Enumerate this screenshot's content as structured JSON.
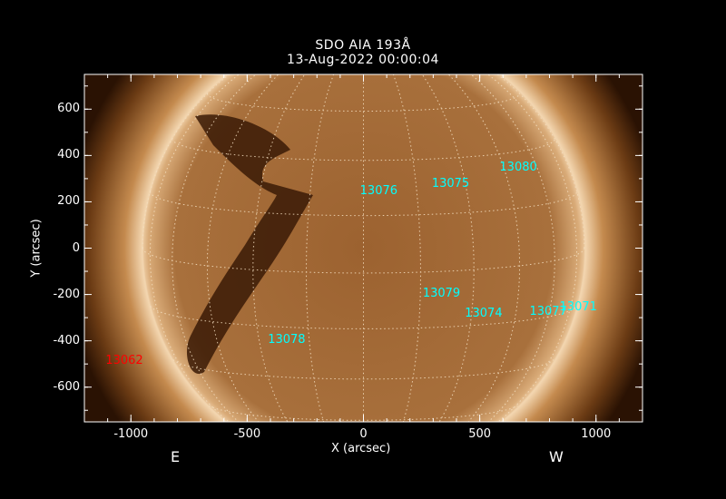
{
  "title": "SDO AIA 193Å",
  "date": "13-Aug-2022 00:00:04",
  "chart_data": {
    "type": "image",
    "xlabel": "X (arcsec)",
    "ylabel": "Y (arcsec)",
    "xlim": [
      -1200,
      1200
    ],
    "ylim": [
      -750,
      750
    ],
    "xticks": [
      -1000,
      -500,
      0,
      500,
      1000
    ],
    "yticks": [
      -600,
      -400,
      -200,
      0,
      200,
      400,
      600
    ],
    "grid": true,
    "east_label": "E",
    "west_label": "W",
    "regions": [
      {
        "id": "13076",
        "x": 67,
        "y": 243,
        "color": "#00ffff"
      },
      {
        "id": "13075",
        "x": 376,
        "y": 278,
        "color": "#00ffff"
      },
      {
        "id": "13080",
        "x": 667,
        "y": 345,
        "color": "#00ffff"
      },
      {
        "id": "13079",
        "x": 337,
        "y": -196,
        "color": "#00ffff"
      },
      {
        "id": "13074",
        "x": 518,
        "y": -282,
        "color": "#00ffff"
      },
      {
        "id": "13077",
        "x": 796,
        "y": -275,
        "color": "#00ffff"
      },
      {
        "id": "13071",
        "x": 925,
        "y": -255,
        "color": "#00ffff"
      },
      {
        "id": "13078",
        "x": -329,
        "y": -396,
        "color": "#00ffff"
      },
      {
        "id": "13062",
        "x": -1027,
        "y": -486,
        "color": "#ff0000"
      }
    ]
  }
}
